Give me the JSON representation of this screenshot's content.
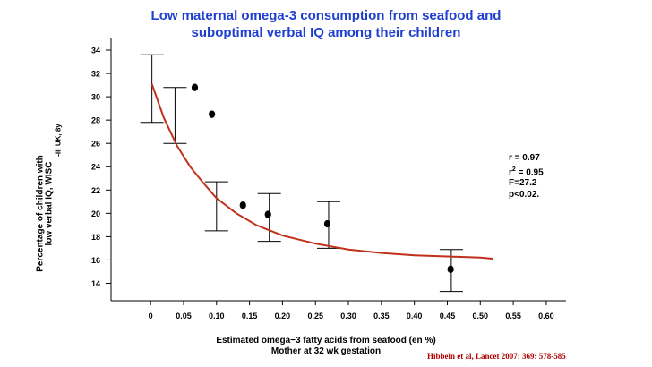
{
  "title": {
    "line1": "Low maternal omega-3 consumption from seafood and",
    "line2": "suboptimal verbal IQ among their children"
  },
  "stats": {
    "r": "r = 0.97",
    "r2_prefix": "r",
    "r2_sup": "2",
    "r2_suffix": " = 0.95",
    "f": "F=27.2",
    "p": "p<0.02."
  },
  "citation": "Hibbeln et al,  Lancet 2007: 369: 578-585",
  "colors": {
    "title": "#1f3fd0",
    "curve": "#c0301b",
    "citation": "#b00000",
    "points": "#000000"
  },
  "chart_data": {
    "type": "scatter",
    "xlabel_line1": "Estimated omega−3 fatty acids from seafood (en %)",
    "xlabel_line2": "Mother at 32 wk gestation",
    "ylabel_line1": "Percentage of children with",
    "ylabel_line2": "low verbal IQ, WISC",
    "ylabel_sup": "-III UK, 8y",
    "xlim": [
      -0.06,
      0.63
    ],
    "ylim": [
      12.5,
      35
    ],
    "x_ticks": [
      0,
      0.05,
      0.1,
      0.15,
      0.2,
      0.25,
      0.3,
      0.35,
      0.4,
      0.45,
      0.5,
      0.55,
      0.6
    ],
    "x_tick_labels": [
      "0",
      "0.05",
      "0.10",
      "0.15",
      "0.20",
      "0.25",
      "0.30",
      "0.35",
      "0.40",
      "0.45",
      "0.50",
      "0.55",
      "0.60"
    ],
    "y_ticks": [
      14,
      16,
      18,
      20,
      22,
      24,
      26,
      28,
      30,
      32,
      34
    ],
    "y_tick_labels": [
      "14",
      "16",
      "18",
      "20",
      "22",
      "24",
      "26",
      "28",
      "30",
      "32",
      "34"
    ],
    "points": [
      {
        "x": 0.067,
        "y": 30.8
      },
      {
        "x": 0.093,
        "y": 28.5
      },
      {
        "x": 0.14,
        "y": 20.7
      },
      {
        "x": 0.178,
        "y": 19.9
      },
      {
        "x": 0.268,
        "y": 19.1
      },
      {
        "x": 0.455,
        "y": 15.2
      }
    ],
    "error_bars": [
      {
        "x": 0.002,
        "low": 27.8,
        "high": 33.6
      },
      {
        "x": 0.037,
        "low": 26.0,
        "high": 30.8
      },
      {
        "x": 0.1,
        "low": 18.5,
        "high": 22.7
      },
      {
        "x": 0.18,
        "low": 17.6,
        "high": 21.7
      },
      {
        "x": 0.27,
        "low": 17.0,
        "high": 21.0
      },
      {
        "x": 0.456,
        "low": 13.3,
        "high": 16.9
      }
    ],
    "fit_curve": [
      {
        "x": 0.002,
        "y": 31.1
      },
      {
        "x": 0.02,
        "y": 28.2
      },
      {
        "x": 0.04,
        "y": 25.8
      },
      {
        "x": 0.06,
        "y": 24.0
      },
      {
        "x": 0.08,
        "y": 22.6
      },
      {
        "x": 0.1,
        "y": 21.3
      },
      {
        "x": 0.13,
        "y": 20.0
      },
      {
        "x": 0.16,
        "y": 19.0
      },
      {
        "x": 0.2,
        "y": 18.1
      },
      {
        "x": 0.25,
        "y": 17.4
      },
      {
        "x": 0.3,
        "y": 16.9
      },
      {
        "x": 0.35,
        "y": 16.6
      },
      {
        "x": 0.4,
        "y": 16.4
      },
      {
        "x": 0.45,
        "y": 16.3
      },
      {
        "x": 0.5,
        "y": 16.2
      },
      {
        "x": 0.52,
        "y": 16.1
      }
    ]
  }
}
